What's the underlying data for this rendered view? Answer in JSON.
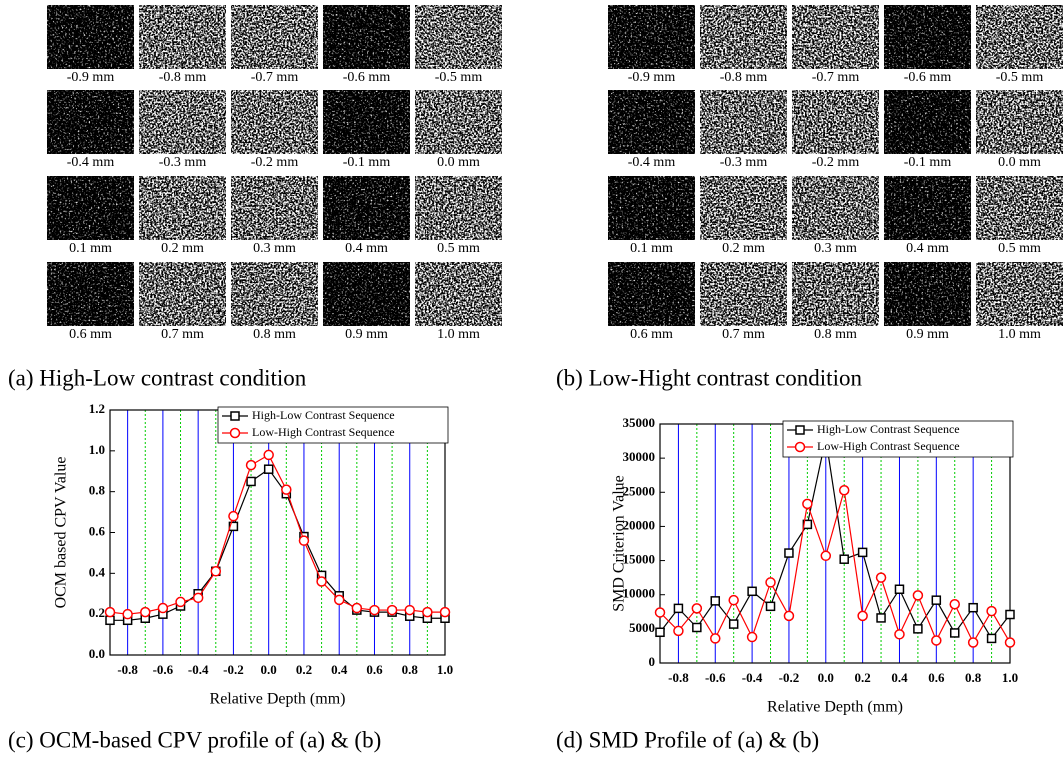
{
  "panels": [
    {
      "caption": "(a) High-Low contrast condition",
      "images": [
        "-0.9 mm",
        "-0.8 mm",
        "-0.7 mm",
        "-0.6 mm",
        "-0.5 mm",
        "-0.4 mm",
        "-0.3 mm",
        "-0.2 mm",
        "-0.1 mm",
        "0.0 mm",
        "0.1 mm",
        "0.2 mm",
        "0.3 mm",
        "0.4 mm",
        "0.5 mm",
        "0.6 mm",
        "0.7 mm",
        "0.8 mm",
        "0.9 mm",
        "1.0 mm"
      ]
    },
    {
      "caption": "(b) Low-Hight contrast condition",
      "images": [
        "-0.9 mm",
        "-0.8 mm",
        "-0.7 mm",
        "-0.6 mm",
        "-0.5 mm",
        "-0.4 mm",
        "-0.3 mm",
        "-0.2 mm",
        "-0.1 mm",
        "0.0 mm",
        "0.1 mm",
        "0.2 mm",
        "0.3 mm",
        "0.4 mm",
        "0.5 mm",
        "0.6 mm",
        "0.7 mm",
        "0.8 mm",
        "0.9 mm",
        "1.0 mm"
      ]
    }
  ],
  "chart_data": [
    {
      "type": "line",
      "caption": "(c) OCM-based CPV profile of (a) & (b)",
      "xlabel": "Relative Depth (mm)",
      "ylabel": "OCM based CPV Value",
      "x": [
        -0.9,
        -0.8,
        -0.7,
        -0.6,
        -0.5,
        -0.4,
        -0.3,
        -0.2,
        -0.1,
        0.0,
        0.1,
        0.2,
        0.3,
        0.4,
        0.5,
        0.6,
        0.7,
        0.8,
        0.9,
        1.0
      ],
      "series": [
        {
          "name": "High-Low Contrast Sequence",
          "color": "#000000",
          "marker": "square",
          "values": [
            0.17,
            0.17,
            0.18,
            0.2,
            0.24,
            0.3,
            0.41,
            0.63,
            0.85,
            0.91,
            0.79,
            0.58,
            0.39,
            0.29,
            0.22,
            0.21,
            0.21,
            0.19,
            0.18,
            0.18
          ]
        },
        {
          "name": "Low-High Contrast Sequence",
          "color": "#ff0000",
          "marker": "circle",
          "values": [
            0.21,
            0.2,
            0.21,
            0.23,
            0.26,
            0.28,
            0.41,
            0.68,
            0.93,
            0.98,
            0.81,
            0.56,
            0.36,
            0.27,
            0.23,
            0.22,
            0.22,
            0.22,
            0.21,
            0.21
          ]
        }
      ],
      "xlim": [
        -0.9,
        1.0
      ],
      "xticks": [
        -0.8,
        -0.6,
        -0.4,
        -0.2,
        {
          "value": 0,
          "label": "0.0"
        },
        0.2,
        0.4,
        0.6,
        0.8,
        {
          "value": 1,
          "label": "1.0"
        }
      ],
      "minor_xticks": [
        -0.7,
        -0.5,
        -0.3,
        -0.1,
        0.1,
        0.3,
        0.5,
        0.7,
        0.9
      ],
      "ylim": [
        0,
        1.2
      ],
      "yticks": [
        {
          "value": 0,
          "label": "0.0"
        },
        0.2,
        0.4,
        0.6,
        0.8,
        {
          "value": 1,
          "label": "1.0"
        },
        1.2
      ],
      "grid_color": "#0000ff",
      "minor_grid_color": "#00cc00",
      "legend": "upper-right"
    },
    {
      "type": "line",
      "caption": "(d) SMD Profile of (a) & (b)",
      "xlabel": "Relative Depth (mm)",
      "ylabel": "SMD Criterion Value",
      "x": [
        -0.9,
        -0.8,
        -0.7,
        -0.6,
        -0.5,
        -0.4,
        -0.3,
        -0.2,
        -0.1,
        0.0,
        0.1,
        0.2,
        0.3,
        0.4,
        0.5,
        0.6,
        0.7,
        0.8,
        0.9,
        1.0
      ],
      "series": [
        {
          "name": "High-Low Contrast Sequence",
          "color": "#000000",
          "marker": "square",
          "values": [
            4500,
            8000,
            5200,
            9100,
            5700,
            10500,
            8300,
            16100,
            20300,
            32900,
            15200,
            16200,
            6600,
            10800,
            5000,
            9200,
            4400,
            8100,
            3600,
            7100
          ]
        },
        {
          "name": "Low-High Contrast Sequence",
          "color": "#ff0000",
          "marker": "circle",
          "values": [
            7400,
            4700,
            8000,
            3600,
            9200,
            3800,
            11800,
            6900,
            23300,
            15700,
            25300,
            6900,
            12500,
            4200,
            9900,
            3300,
            8600,
            3000,
            7600,
            3000
          ]
        }
      ],
      "xlim": [
        -0.9,
        1.0
      ],
      "xticks": [
        -0.8,
        -0.6,
        -0.4,
        -0.2,
        {
          "value": 0,
          "label": "0.0"
        },
        0.2,
        0.4,
        0.6,
        0.8,
        {
          "value": 1,
          "label": "1.0"
        }
      ],
      "minor_xticks": [
        -0.7,
        -0.5,
        -0.3,
        -0.1,
        0.1,
        0.3,
        0.5,
        0.7,
        0.9
      ],
      "ylim": [
        0,
        35000
      ],
      "yticks": [
        0,
        5000,
        10000,
        15000,
        20000,
        25000,
        30000,
        35000
      ],
      "grid_color": "#0000ff",
      "minor_grid_color": "#00cc00",
      "legend": "upper-right"
    }
  ]
}
